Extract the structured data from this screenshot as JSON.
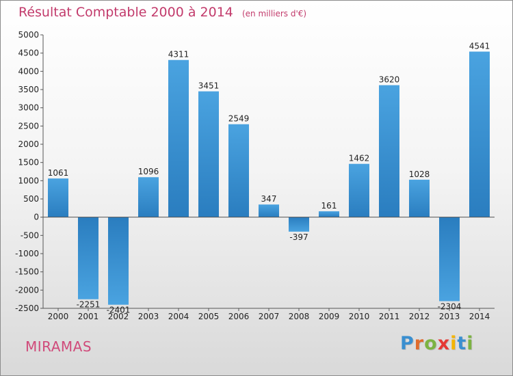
{
  "chart_data": {
    "type": "bar",
    "title": "Résultat Comptable 2000 à 2014",
    "subtitle": "(en milliers d'€)",
    "categories": [
      "2000",
      "2001",
      "2002",
      "2003",
      "2004",
      "2005",
      "2006",
      "2007",
      "2008",
      "2009",
      "2010",
      "2011",
      "2012",
      "2013",
      "2014"
    ],
    "values": [
      1061,
      -2251,
      -2401,
      1096,
      4311,
      3451,
      2549,
      347,
      -397,
      161,
      1462,
      3620,
      1028,
      -2304,
      4541
    ],
    "value_labels": [
      "1061",
      "-2251",
      "-2401",
      "1096",
      "4311",
      "3451",
      "2549",
      "347",
      "-397",
      "161",
      "1462",
      "3620",
      "1028",
      "-2304",
      "4541"
    ],
    "ylim": [
      -2500,
      5000
    ],
    "yticks": [
      5000,
      4500,
      4000,
      3500,
      3000,
      2500,
      2000,
      1500,
      1000,
      500,
      0,
      -500,
      -1000,
      -1500,
      -2000,
      -2500
    ],
    "grid": false,
    "bar_color": "#4aa3e0",
    "bar_color_dark": "#2a7dbf"
  },
  "footer": {
    "city": "MIRAMAS",
    "logo": [
      "P",
      "r",
      "o",
      "x",
      "i",
      "t",
      "i"
    ],
    "logo_colors": [
      "#3a8fd0",
      "#e06b2c",
      "#7cb342",
      "#e53935",
      "#f4b400",
      "#3a8fd0",
      "#7cb342"
    ]
  }
}
